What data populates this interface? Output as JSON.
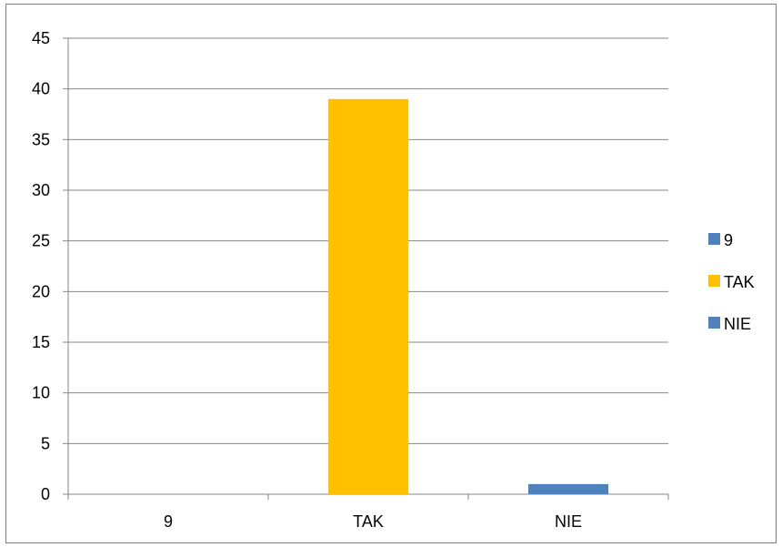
{
  "chart_data": {
    "type": "bar",
    "title": "",
    "xlabel": "",
    "ylabel": "",
    "categories": [
      "9",
      "TAK",
      "NIE"
    ],
    "values": [
      0,
      39,
      1
    ],
    "ylim": [
      0,
      45
    ],
    "yticks": [
      "0",
      "5",
      "10",
      "15",
      "20",
      "25",
      "30",
      "35",
      "40",
      "45"
    ],
    "grid": true,
    "legend_position": "right",
    "legend": [
      {
        "label": "9",
        "color": "#4f81bd"
      },
      {
        "label": "TAK",
        "color": "#ffc000"
      },
      {
        "label": "NIE",
        "color": "#4f81bd"
      }
    ],
    "bar_colors": [
      "#4f81bd",
      "#ffc000",
      "#4f81bd"
    ]
  }
}
